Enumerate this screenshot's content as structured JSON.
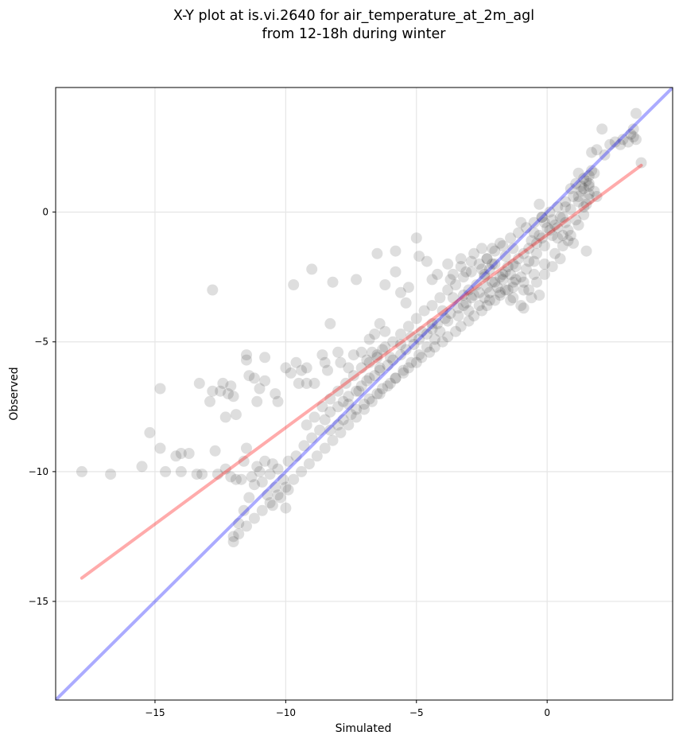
{
  "chart_data": {
    "type": "scatter",
    "title": [
      "X-Y plot at is.vi.2640 for air_temperature_at_2m_agl",
      "from 12-18h during winter"
    ],
    "xlabel": "Simulated",
    "ylabel": "Observed",
    "xlim": [
      -18.8,
      4.8
    ],
    "ylim": [
      -18.8,
      4.8
    ],
    "xticks": [
      -15,
      -10,
      -5,
      0
    ],
    "yticks": [
      -15,
      -10,
      -5,
      0
    ],
    "xtick_labels": [
      "−15",
      "−10",
      "−5",
      "0"
    ],
    "ytick_labels": [
      "−15",
      "−10",
      "−5",
      "0"
    ],
    "grid": true,
    "point_color": "#000000",
    "point_alpha": 0.13,
    "lines": [
      {
        "role": "one-to-one",
        "color": "#0000ff",
        "alpha": 0.33,
        "points": [
          [
            -18.8,
            -18.8
          ],
          [
            4.8,
            4.8
          ]
        ]
      },
      {
        "role": "regression",
        "color": "#ff0000",
        "alpha": 0.33,
        "points": [
          [
            -17.8,
            -14.1
          ],
          [
            3.6,
            1.8
          ]
        ]
      }
    ],
    "points": [
      [
        -17.8,
        -10.0
      ],
      [
        -16.7,
        -10.1
      ],
      [
        -15.5,
        -9.8
      ],
      [
        -15.2,
        -8.5
      ],
      [
        -14.8,
        -6.8
      ],
      [
        -14.8,
        -9.1
      ],
      [
        -14.6,
        -10.0
      ],
      [
        -14.2,
        -9.4
      ],
      [
        -14.0,
        -9.3
      ],
      [
        -14.0,
        -10.0
      ],
      [
        -13.7,
        -9.3
      ],
      [
        -13.4,
        -10.1
      ],
      [
        -13.2,
        -10.1
      ],
      [
        -13.3,
        -6.6
      ],
      [
        -12.9,
        -7.3
      ],
      [
        -12.8,
        -6.9
      ],
      [
        -12.7,
        -9.2
      ],
      [
        -12.6,
        -10.1
      ],
      [
        -12.8,
        -3.0
      ],
      [
        -12.5,
        -6.9
      ],
      [
        -12.4,
        -6.6
      ],
      [
        -12.2,
        -7.0
      ],
      [
        -12.1,
        -6.7
      ],
      [
        -12.3,
        -7.9
      ],
      [
        -11.9,
        -7.8
      ],
      [
        -12.0,
        -7.1
      ],
      [
        -11.5,
        -5.5
      ],
      [
        -11.5,
        -5.7
      ],
      [
        -11.4,
        -6.3
      ],
      [
        -11.2,
        -6.4
      ],
      [
        -11.1,
        -7.3
      ],
      [
        -11.0,
        -6.8
      ],
      [
        -10.8,
        -6.5
      ],
      [
        -10.8,
        -5.6
      ],
      [
        -10.4,
        -7.0
      ],
      [
        -10.3,
        -7.3
      ],
      [
        -10.0,
        -6.0
      ],
      [
        -9.8,
        -6.2
      ],
      [
        -9.6,
        -5.8
      ],
      [
        -9.4,
        -6.1
      ],
      [
        -9.2,
        -6.0
      ],
      [
        -9.5,
        -6.6
      ],
      [
        -9.2,
        -6.6
      ],
      [
        -8.9,
        -6.6
      ],
      [
        -9.7,
        -2.8
      ],
      [
        -9.0,
        -2.2
      ],
      [
        -8.2,
        -2.7
      ],
      [
        -8.3,
        -4.3
      ],
      [
        -8.6,
        -5.5
      ],
      [
        -8.5,
        -5.8
      ],
      [
        -8.4,
        -6.1
      ],
      [
        -8.0,
        -5.4
      ],
      [
        -7.9,
        -5.8
      ],
      [
        -7.6,
        -6.0
      ],
      [
        -7.4,
        -5.5
      ],
      [
        -7.1,
        -5.4
      ],
      [
        -6.9,
        -5.7
      ],
      [
        -6.7,
        -5.4
      ],
      [
        -6.5,
        -5.6
      ],
      [
        -6.3,
        -5.3
      ],
      [
        -6.8,
        -4.9
      ],
      [
        -6.6,
        -4.7
      ],
      [
        -6.4,
        -4.3
      ],
      [
        -6.2,
        -4.6
      ],
      [
        -7.3,
        -2.6
      ],
      [
        -6.5,
        -1.6
      ],
      [
        -5.8,
        -1.5
      ],
      [
        -5.8,
        -2.3
      ],
      [
        -6.2,
        -2.8
      ],
      [
        -5.6,
        -3.1
      ],
      [
        -5.4,
        -3.5
      ],
      [
        -5.3,
        -2.9
      ],
      [
        -5.0,
        -1.0
      ],
      [
        -4.9,
        -1.7
      ],
      [
        -4.6,
        -1.9
      ],
      [
        -4.4,
        -2.6
      ],
      [
        -4.2,
        -2.4
      ],
      [
        -3.8,
        -2.0
      ],
      [
        -3.6,
        -2.4
      ],
      [
        -3.3,
        -1.8
      ],
      [
        -3.1,
        -2.3
      ],
      [
        -2.8,
        -1.6
      ],
      [
        -2.5,
        -1.4
      ],
      [
        -2.3,
        -1.8
      ],
      [
        -2.1,
        -1.4
      ],
      [
        -1.8,
        -1.2
      ],
      [
        -1.6,
        -1.7
      ],
      [
        -1.3,
        -1.4
      ],
      [
        -1.0,
        -0.4
      ],
      [
        -0.5,
        -0.8
      ],
      [
        -0.3,
        0.3
      ],
      [
        -0.1,
        -0.4
      ],
      [
        0.2,
        -0.9
      ],
      [
        0.4,
        -0.6
      ],
      [
        0.7,
        -0.4
      ],
      [
        0.8,
        -0.7
      ],
      [
        1.1,
        -0.3
      ],
      [
        1.4,
        0.2
      ],
      [
        1.6,
        0.5
      ],
      [
        1.8,
        0.8
      ],
      [
        1.9,
        0.6
      ],
      [
        1.5,
        -1.5
      ],
      [
        1.0,
        -1.2
      ],
      [
        0.8,
        -1.1
      ],
      [
        0.6,
        -0.2
      ],
      [
        0.9,
        0.1
      ],
      [
        1.2,
        0.6
      ],
      [
        1.4,
        0.9
      ],
      [
        1.5,
        1.2
      ],
      [
        1.6,
        1.4
      ],
      [
        1.7,
        1.6
      ],
      [
        1.3,
        1.0
      ],
      [
        1.2,
        0.4
      ],
      [
        0.7,
        0.2
      ],
      [
        0.9,
        0.9
      ],
      [
        1.1,
        1.1
      ],
      [
        0.5,
        -0.2
      ],
      [
        0.3,
        -0.5
      ],
      [
        0.1,
        -0.7
      ],
      [
        -0.2,
        -1.0
      ],
      [
        -0.4,
        -1.2
      ],
      [
        -0.7,
        -1.4
      ],
      [
        -0.9,
        -1.6
      ],
      [
        -1.1,
        -1.8
      ],
      [
        -1.3,
        -2.0
      ],
      [
        -1.6,
        -2.3
      ],
      [
        -1.8,
        -2.5
      ],
      [
        -2.1,
        -2.7
      ],
      [
        -2.3,
        -2.9
      ],
      [
        -2.6,
        -3.1
      ],
      [
        -2.9,
        -3.3
      ],
      [
        -3.1,
        -3.5
      ],
      [
        -3.4,
        -3.7
      ],
      [
        -3.7,
        -3.9
      ],
      [
        -3.9,
        -4.1
      ],
      [
        -4.2,
        -4.3
      ],
      [
        -4.4,
        -4.5
      ],
      [
        -4.6,
        -4.7
      ],
      [
        -4.9,
        -4.9
      ],
      [
        -5.1,
        -5.1
      ],
      [
        -5.4,
        -5.3
      ],
      [
        -5.6,
        -5.5
      ],
      [
        -5.9,
        -5.7
      ],
      [
        -6.1,
        -5.9
      ],
      [
        -6.4,
        -6.1
      ],
      [
        -6.6,
        -6.3
      ],
      [
        -6.9,
        -6.5
      ],
      [
        -7.1,
        -6.7
      ],
      [
        -7.3,
        -6.9
      ],
      [
        -7.6,
        -7.1
      ],
      [
        -7.8,
        -7.3
      ],
      [
        -8.0,
        -7.5
      ],
      [
        -8.3,
        -7.7
      ],
      [
        -8.5,
        -8.0
      ],
      [
        -0.5,
        -1.9
      ],
      [
        -0.8,
        -2.2
      ],
      [
        -1.0,
        -2.5
      ],
      [
        -1.3,
        -2.7
      ],
      [
        -1.5,
        -3.0
      ],
      [
        -1.8,
        -3.2
      ],
      [
        -2.0,
        -3.4
      ],
      [
        -2.3,
        -3.6
      ],
      [
        -2.5,
        -3.8
      ],
      [
        -2.8,
        -4.0
      ],
      [
        -3.0,
        -4.2
      ],
      [
        -3.3,
        -4.4
      ],
      [
        -3.5,
        -4.6
      ],
      [
        -3.8,
        -4.8
      ],
      [
        -4.0,
        -5.0
      ],
      [
        -4.3,
        -5.2
      ],
      [
        -4.5,
        -5.4
      ],
      [
        -4.8,
        -5.6
      ],
      [
        -5.0,
        -5.8
      ],
      [
        -5.3,
        -6.0
      ],
      [
        -5.5,
        -6.2
      ],
      [
        -5.8,
        -6.4
      ],
      [
        -6.0,
        -6.6
      ],
      [
        -6.3,
        -6.8
      ],
      [
        -6.5,
        -7.0
      ],
      [
        -6.8,
        -7.2
      ],
      [
        -7.0,
        -7.4
      ],
      [
        -7.3,
        -7.6
      ],
      [
        -7.5,
        -7.8
      ],
      [
        -7.8,
        -8.0
      ],
      [
        -8.0,
        -8.2
      ],
      [
        -8.3,
        -8.4
      ],
      [
        0.0,
        -0.6
      ],
      [
        0.2,
        -0.3
      ],
      [
        -0.3,
        -0.9
      ],
      [
        -0.6,
        -1.1
      ],
      [
        -0.2,
        -0.2
      ],
      [
        0.4,
        -1.0
      ],
      [
        0.6,
        -0.9
      ],
      [
        -0.1,
        -1.3
      ],
      [
        -0.4,
        -1.6
      ],
      [
        -0.7,
        -1.9
      ],
      [
        -1.2,
        -2.1
      ],
      [
        -1.4,
        -2.4
      ],
      [
        -1.7,
        -2.6
      ],
      [
        -1.9,
        -2.9
      ],
      [
        -2.2,
        -3.1
      ],
      [
        -2.4,
        -3.3
      ],
      [
        -2.7,
        -2.8
      ],
      [
        -3.0,
        -3.0
      ],
      [
        -3.2,
        -3.2
      ],
      [
        -2.0,
        -2.0
      ],
      [
        -2.2,
        -2.2
      ],
      [
        -2.4,
        -2.4
      ],
      [
        -1.5,
        -2.1
      ],
      [
        -1.2,
        -2.6
      ],
      [
        -0.9,
        -3.0
      ],
      [
        -0.6,
        -3.3
      ],
      [
        -1.0,
        -3.6
      ],
      [
        -1.4,
        -3.4
      ],
      [
        -1.8,
        -3.1
      ],
      [
        -2.2,
        -3.4
      ],
      [
        -2.6,
        -3.6
      ],
      [
        -3.0,
        -3.8
      ],
      [
        -3.4,
        -4.0
      ],
      [
        -3.8,
        -4.2
      ],
      [
        -4.1,
        -4.6
      ],
      [
        -4.3,
        -4.9
      ],
      [
        -4.6,
        -5.2
      ],
      [
        -4.9,
        -5.5
      ],
      [
        -5.2,
        -5.8
      ],
      [
        -5.5,
        -6.1
      ],
      [
        -5.8,
        -6.4
      ],
      [
        -6.1,
        -6.7
      ],
      [
        -6.4,
        -7.0
      ],
      [
        -6.7,
        -7.3
      ],
      [
        -7.0,
        -7.6
      ],
      [
        -7.3,
        -7.9
      ],
      [
        -7.6,
        -8.2
      ],
      [
        -7.9,
        -8.5
      ],
      [
        -8.2,
        -8.8
      ],
      [
        -8.5,
        -9.1
      ],
      [
        -8.8,
        -9.4
      ],
      [
        -9.1,
        -9.7
      ],
      [
        -9.4,
        -10.0
      ],
      [
        -9.7,
        -10.3
      ],
      [
        -10.0,
        -10.6
      ],
      [
        -10.3,
        -10.9
      ],
      [
        -10.6,
        -11.2
      ],
      [
        -10.9,
        -11.5
      ],
      [
        -11.2,
        -11.8
      ],
      [
        -11.5,
        -12.1
      ],
      [
        -11.8,
        -12.4
      ],
      [
        -12.0,
        -12.7
      ],
      [
        -12.0,
        -12.5
      ],
      [
        -11.8,
        -12.0
      ],
      [
        -11.6,
        -11.5
      ],
      [
        -11.4,
        -11.0
      ],
      [
        -11.2,
        -10.5
      ],
      [
        -11.0,
        -10.0
      ],
      [
        -10.8,
        -9.6
      ],
      [
        -10.6,
        -10.1
      ],
      [
        -10.4,
        -10.6
      ],
      [
        -10.2,
        -11.0
      ],
      [
        -10.0,
        -11.4
      ],
      [
        -10.5,
        -9.7
      ],
      [
        -10.3,
        -9.9
      ],
      [
        -10.1,
        -10.3
      ],
      [
        -9.9,
        -10.7
      ],
      [
        -11.3,
        -10.2
      ],
      [
        -11.1,
        -9.8
      ],
      [
        -10.9,
        -10.4
      ],
      [
        -10.7,
        -10.9
      ],
      [
        -10.5,
        -11.3
      ],
      [
        -11.5,
        -9.1
      ],
      [
        -11.6,
        -9.6
      ],
      [
        -11.7,
        -10.3
      ],
      [
        -11.9,
        -10.3
      ],
      [
        -12.1,
        -10.2
      ],
      [
        -12.3,
        -9.9
      ],
      [
        -9.9,
        -9.6
      ],
      [
        -9.6,
        -9.4
      ],
      [
        -9.3,
        -9.0
      ],
      [
        -9.0,
        -8.7
      ],
      [
        -8.7,
        -8.4
      ],
      [
        -9.2,
        -8.2
      ],
      [
        -8.9,
        -7.9
      ],
      [
        -8.6,
        -7.5
      ],
      [
        -8.3,
        -7.2
      ],
      [
        -8.0,
        -6.9
      ],
      [
        -7.7,
        -6.6
      ],
      [
        -7.4,
        -6.3
      ],
      [
        -7.1,
        -6.0
      ],
      [
        -6.8,
        -5.8
      ],
      [
        -6.5,
        -5.5
      ],
      [
        -6.2,
        -5.2
      ],
      [
        -5.9,
        -5.0
      ],
      [
        -5.6,
        -4.7
      ],
      [
        -5.3,
        -4.4
      ],
      [
        -5.0,
        -4.1
      ],
      [
        -4.7,
        -3.8
      ],
      [
        -4.4,
        -3.6
      ],
      [
        -4.1,
        -3.3
      ],
      [
        -3.8,
        -3.0
      ],
      [
        -3.5,
        -2.8
      ],
      [
        -3.2,
        -2.5
      ],
      [
        -2.9,
        -2.3
      ],
      [
        -2.6,
        -2.0
      ],
      [
        -2.3,
        -1.8
      ],
      [
        -2.0,
        -1.5
      ],
      [
        -1.7,
        -1.3
      ],
      [
        -1.4,
        -1.0
      ],
      [
        -1.1,
        -0.8
      ],
      [
        -0.8,
        -0.6
      ],
      [
        -0.5,
        -0.4
      ],
      [
        -0.2,
        -0.2
      ],
      [
        0.1,
        0.0
      ],
      [
        0.4,
        0.2
      ],
      [
        0.7,
        0.4
      ],
      [
        1.0,
        0.6
      ],
      [
        1.3,
        0.8
      ],
      [
        1.6,
        1.0
      ],
      [
        2.1,
        3.2
      ],
      [
        2.2,
        2.2
      ],
      [
        2.4,
        2.6
      ],
      [
        2.6,
        2.7
      ],
      [
        2.8,
        2.6
      ],
      [
        2.9,
        2.8
      ],
      [
        3.1,
        2.7
      ],
      [
        3.2,
        3.0
      ],
      [
        3.3,
        2.9
      ],
      [
        3.4,
        2.8
      ],
      [
        3.3,
        3.2
      ],
      [
        3.4,
        3.8
      ],
      [
        3.6,
        1.9
      ],
      [
        1.7,
        2.3
      ],
      [
        1.9,
        2.4
      ],
      [
        0.5,
        -1.8
      ],
      [
        0.2,
        -2.1
      ],
      [
        -0.1,
        -2.4
      ],
      [
        -0.4,
        -2.7
      ],
      [
        -0.7,
        -3.0
      ],
      [
        -0.3,
        -3.2
      ],
      [
        -0.9,
        -3.7
      ],
      [
        -1.3,
        -3.3
      ],
      [
        -1.6,
        -3.0
      ],
      [
        -2.0,
        -2.7
      ],
      [
        -2.4,
        -2.5
      ],
      [
        -2.8,
        -3.2
      ],
      [
        -3.2,
        -3.6
      ],
      [
        -3.6,
        -3.3
      ],
      [
        -4.0,
        -3.8
      ],
      [
        -4.4,
        -4.3
      ],
      [
        -4.8,
        -4.6
      ],
      [
        -5.2,
        -4.8
      ],
      [
        -5.6,
        -5.1
      ],
      [
        -6.0,
        -5.6
      ],
      [
        -6.4,
        -6.0
      ],
      [
        -6.8,
        -6.4
      ],
      [
        -7.2,
        -6.9
      ],
      [
        -7.6,
        -7.4
      ],
      [
        -3.7,
        -2.6
      ],
      [
        -3.3,
        -2.1
      ],
      [
        -2.9,
        -1.9
      ],
      [
        -2.5,
        -2.2
      ],
      [
        -2.1,
        -2.0
      ],
      [
        -1.7,
        -2.4
      ],
      [
        -1.3,
        -2.9
      ],
      [
        -0.9,
        -2.7
      ],
      [
        -0.5,
        -2.4
      ],
      [
        -0.1,
        -2.0
      ],
      [
        0.3,
        -1.6
      ],
      [
        0.6,
        -1.3
      ],
      [
        0.9,
        -0.9
      ],
      [
        1.2,
        -0.5
      ],
      [
        1.4,
        -0.1
      ],
      [
        1.5,
        0.3
      ],
      [
        1.6,
        0.7
      ],
      [
        1.8,
        1.5
      ],
      [
        1.6,
        1.1
      ],
      [
        1.4,
        1.3
      ],
      [
        1.2,
        1.5
      ]
    ]
  }
}
